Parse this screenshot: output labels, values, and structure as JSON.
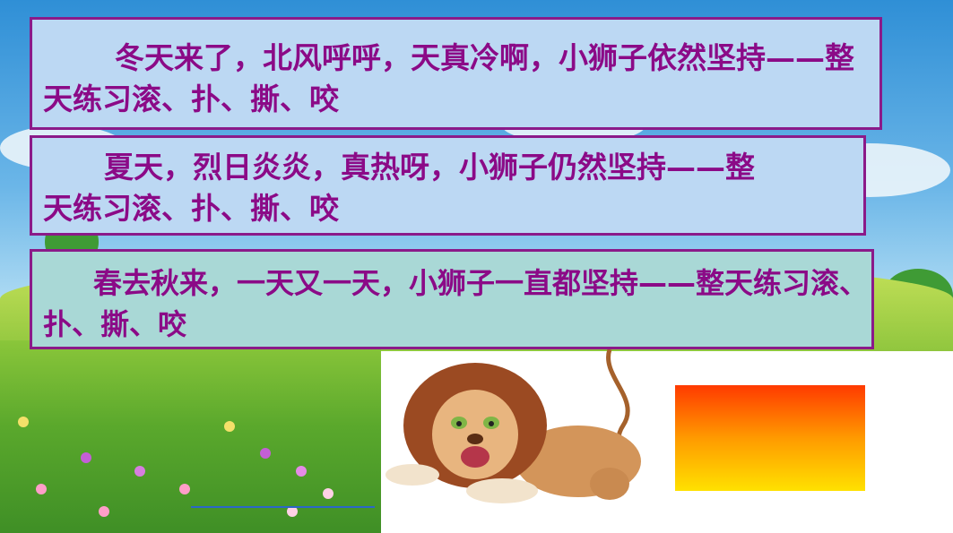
{
  "slide": {
    "paragraph_1": "冬天来了，北风呼呼，天真冷啊，小狮子依然坚持——整天练习滚、扑、撕、咬",
    "paragraph_2": "夏天，烈日炎炎，真热呀，小狮子仍然坚持——整天练习滚、扑、撕、咬",
    "paragraph_3": "春去秋来，一天又一天，小狮子一直都坚持——整天练习滚、扑、撕、咬"
  },
  "colors": {
    "text": "#8b0a87",
    "border": "#8b1a89",
    "box_fill_1": "#bcd8f3",
    "box_fill_3": "#a9d8d6",
    "gradient_top": "#ff3a00",
    "gradient_bottom": "#ffe100"
  },
  "icons": {
    "lion": "lion-illustration",
    "scene": "meadow-background"
  }
}
